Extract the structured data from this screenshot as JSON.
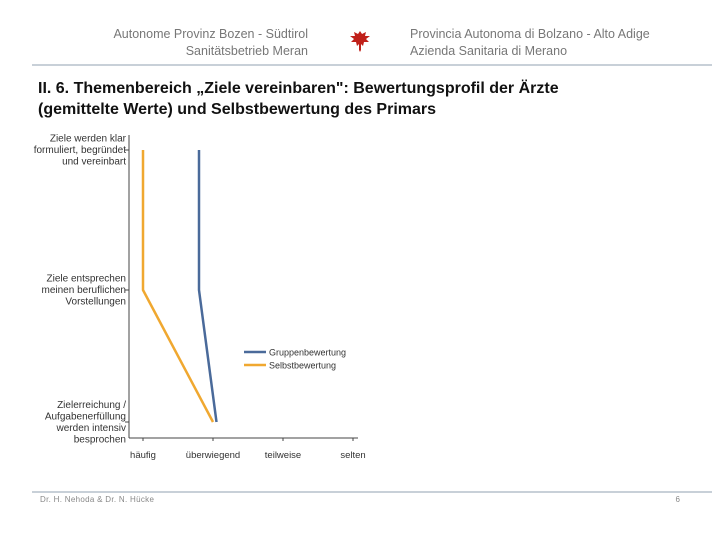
{
  "header": {
    "left_line1": "Autonome Provinz Bozen - Südtirol",
    "left_line2": "Sanitätsbetrieb Meran",
    "right_line1": "Provincia Autonoma di Bolzano - Alto Adige",
    "right_line2": "Azienda Sanitaria di Merano"
  },
  "title": {
    "line1": "II. 6. Themenbereich „Ziele vereinbaren\": Bewertungsprofil der Ärzte",
    "line2": "(gemittelte Werte) und Selbstbewertung des Primars"
  },
  "footer": {
    "authors": "Dr. H. Nehoda & Dr. N. Hücke",
    "page": "6"
  },
  "colors": {
    "gruppe": "#4a6a9a",
    "selbst": "#f0a830",
    "rule": "#c8d0d8",
    "eagle": "#c0201a"
  },
  "chart_data": {
    "type": "line",
    "categories": [
      [
        "Ziele werden klar",
        "formuliert, begründet",
        "und vereinbart"
      ],
      [
        "Ziele entsprechen",
        "meinen beruflichen",
        "Vorstellungen"
      ],
      [
        "Zielerreichung /",
        "Aufgabenerfüllung",
        "werden intensiv",
        "besprochen"
      ]
    ],
    "scale_labels": [
      "häufig",
      "überwiegend",
      "teilweise",
      "selten"
    ],
    "xlim": [
      1,
      4
    ],
    "series": [
      {
        "name": "Gruppenbewertung",
        "values": [
          1.8,
          1.8,
          2.05
        ],
        "color": "#4a6a9a"
      },
      {
        "name": "Selbstbewertung",
        "values": [
          1.0,
          1.0,
          2.0
        ],
        "color": "#f0a830"
      }
    ],
    "legend_position": "center-right",
    "grid": false
  }
}
